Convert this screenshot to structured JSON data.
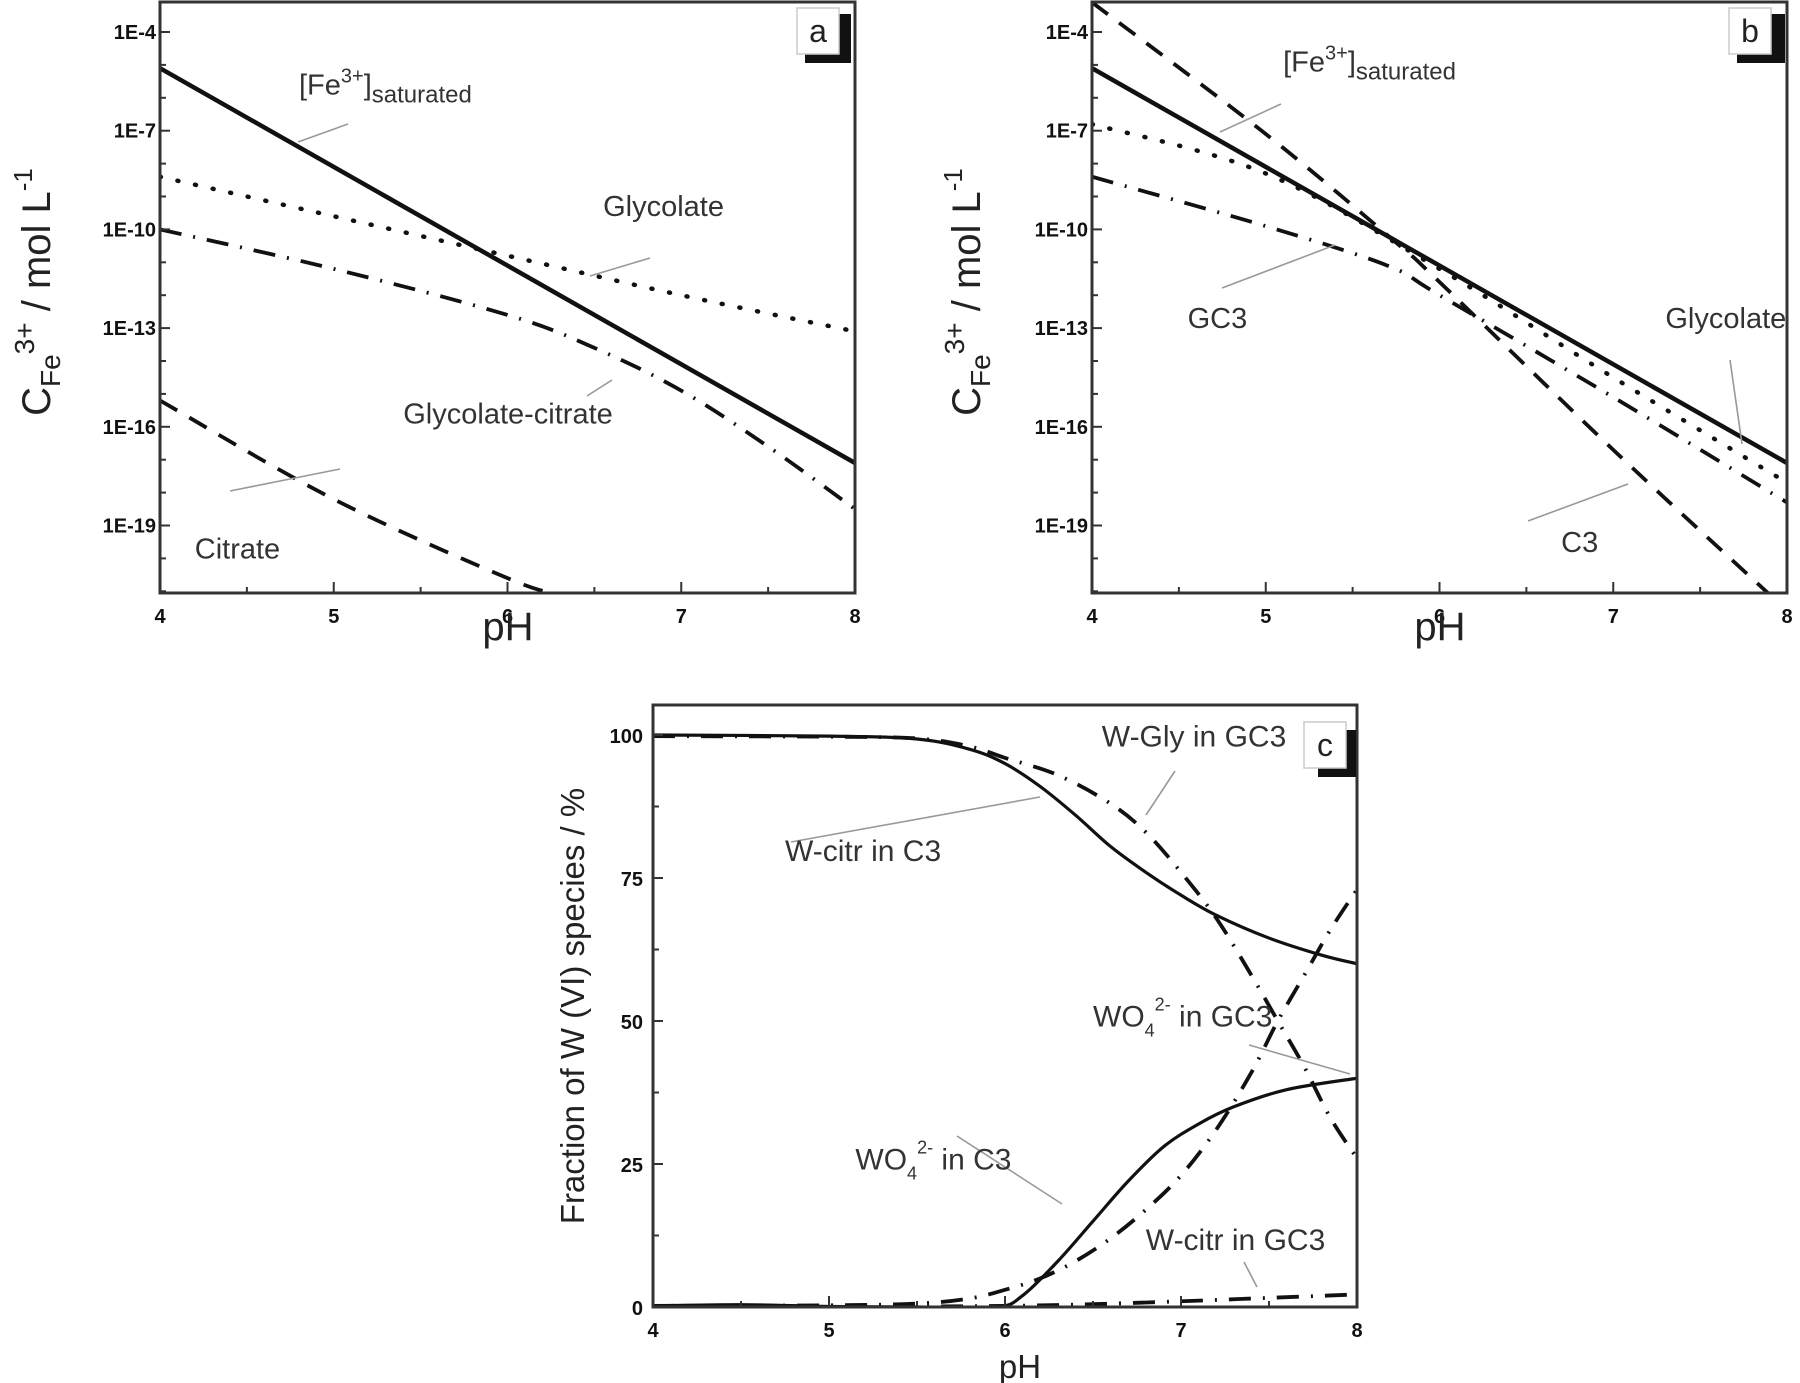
{
  "figure": {
    "panels": [
      {
        "id": "a",
        "label": "a"
      },
      {
        "id": "b",
        "label": "b"
      },
      {
        "id": "c",
        "label": "c"
      }
    ]
  },
  "chart_data": [
    {
      "panel": "a",
      "type": "line",
      "title": "",
      "xlabel": "pH",
      "ylabel": "C_Fe3+ / mol L^-1",
      "ylabel_parts": {
        "main": "C",
        "sub": "Fe",
        "sup": "3+",
        "rest": " / mol L",
        "unit_sup": "-1"
      },
      "yscale": "log",
      "xlim": [
        4,
        8
      ],
      "ylim_log10": [
        -21.1,
        -3.0
      ],
      "x_ticks": [
        "4",
        "5",
        "6",
        "7",
        "8"
      ],
      "y_ticks": [
        "1E-4",
        "1E-7",
        "1E-10",
        "1E-13",
        "1E-16",
        "1E-19"
      ],
      "grid": false,
      "legend": "inline annotations",
      "series": [
        {
          "name": "[Fe3+]saturated",
          "style": "solid",
          "x": [
            4,
            8
          ],
          "log10_y": [
            -5.1,
            -17.1
          ]
        },
        {
          "name": "Glycolate",
          "style": "dotted",
          "x": [
            4,
            5,
            6,
            7,
            8
          ],
          "log10_y": [
            -8.4,
            -9.6,
            -10.8,
            -12.0,
            -13.1
          ]
        },
        {
          "name": "Glycolate-citrate",
          "style": "dashdot",
          "x": [
            4,
            5,
            6,
            6.5,
            7,
            7.5,
            8
          ],
          "log10_y": [
            -10.0,
            -11.2,
            -12.6,
            -13.6,
            -14.9,
            -16.6,
            -18.5
          ]
        },
        {
          "name": "Citrate",
          "style": "dashed",
          "x": [
            4,
            5,
            6,
            6.3
          ],
          "log10_y": [
            -15.2,
            -18.2,
            -20.6,
            -21.1
          ]
        }
      ],
      "annotations": [
        {
          "text": "[Fe3+]saturated",
          "main": "[Fe",
          "sup": "3+",
          "close": "]",
          "sub": "saturated",
          "x": 4.8,
          "log10_y": -5.9
        },
        {
          "text": "Glycolate",
          "x": 6.55,
          "log10_y": -9.6
        },
        {
          "text": "Glycolate-citrate",
          "x": 5.4,
          "log10_y": -15.9
        },
        {
          "text": "Citrate",
          "x": 4.2,
          "log10_y": -20.0
        }
      ]
    },
    {
      "panel": "b",
      "type": "line",
      "title": "",
      "xlabel": "pH",
      "ylabel": "C_Fe3+ / mol L^-1",
      "ylabel_parts": {
        "main": "C",
        "sub": "Fe",
        "sup": "3+",
        "rest": " / mol L",
        "unit_sup": "-1"
      },
      "yscale": "log",
      "xlim": [
        4,
        8
      ],
      "ylim_log10": [
        -21.1,
        -3.0
      ],
      "x_ticks": [
        "4",
        "5",
        "6",
        "7",
        "8"
      ],
      "y_ticks": [
        "1E-4",
        "1E-7",
        "1E-10",
        "1E-13",
        "1E-16",
        "1E-19"
      ],
      "grid": false,
      "legend": "inline annotations",
      "series": [
        {
          "name": "[Fe3+]saturated",
          "style": "solid",
          "x": [
            4,
            8
          ],
          "log10_y": [
            -5.1,
            -17.1
          ]
        },
        {
          "name": "C3",
          "style": "dashed",
          "x": [
            4,
            5,
            5.75,
            6,
            7,
            7.9
          ],
          "log10_y": [
            -3.1,
            -7.1,
            -10.4,
            -11.6,
            -16.7,
            -21.1
          ]
        },
        {
          "name": "Glycolate",
          "style": "dotted",
          "x": [
            4,
            5,
            6,
            7,
            8
          ],
          "log10_y": [
            -6.8,
            -8.3,
            -11.2,
            -14.5,
            -17.7
          ]
        },
        {
          "name": "GC3",
          "style": "dashdot",
          "x": [
            4,
            5,
            5.7,
            6,
            7,
            8
          ],
          "log10_y": [
            -8.4,
            -9.9,
            -11.1,
            -12.0,
            -15.1,
            -18.3
          ]
        }
      ],
      "annotations": [
        {
          "text": "[Fe3+]saturated",
          "main": "[Fe",
          "sup": "3+",
          "close": "]",
          "sub": "saturated",
          "x": 5.1,
          "log10_y": -5.2
        },
        {
          "text": "GC3",
          "x": 4.55,
          "log10_y": -13.0
        },
        {
          "text": "Glycolate",
          "x": 7.3,
          "log10_y": -13.0
        },
        {
          "text": "C3",
          "x": 6.7,
          "log10_y": -19.8
        }
      ]
    },
    {
      "panel": "c",
      "type": "line",
      "title": "",
      "xlabel": "pH",
      "ylabel": "Fraction of W (VI) species / %",
      "xlim": [
        4,
        8
      ],
      "ylim": [
        0,
        104
      ],
      "x_ticks": [
        "4",
        "5",
        "6",
        "7",
        "8"
      ],
      "y_ticks": [
        "0",
        "25",
        "50",
        "75",
        "100"
      ],
      "grid": false,
      "legend": "inline annotations",
      "series": [
        {
          "name": "W-citr in C3",
          "style": "solid",
          "x": [
            4,
            5,
            5.5,
            5.8,
            6,
            6.2,
            6.4,
            6.6,
            6.8,
            7,
            7.2,
            7.5,
            7.8,
            8
          ],
          "y": [
            100,
            99.8,
            99.3,
            97.5,
            95,
            91,
            86,
            80.5,
            76,
            72,
            68.5,
            64.5,
            61.5,
            60
          ]
        },
        {
          "name": "WO4 2- in C3",
          "style": "solid",
          "x": [
            4,
            4.5,
            5,
            5.5,
            5.95,
            6.1,
            6.3,
            6.5,
            6.7,
            6.9,
            7.1,
            7.3,
            7.6,
            8
          ],
          "y": [
            0.2,
            0.4,
            0.1,
            0,
            0,
            2,
            8,
            15,
            22,
            28,
            32,
            35,
            38,
            40
          ]
        },
        {
          "name": "W-Gly in GC3",
          "style": "dashdot",
          "x": [
            4,
            5,
            5.5,
            5.8,
            6,
            6.3,
            6.6,
            6.8,
            7,
            7.2,
            7.4,
            7.55,
            7.7,
            7.85,
            8
          ],
          "y": [
            99.8,
            99.7,
            99.4,
            98,
            96,
            93,
            88,
            83,
            76,
            68,
            58,
            50,
            42,
            33,
            26
          ]
        },
        {
          "name": "WO4 2- in GC3",
          "style": "dashdot",
          "x": [
            4,
            5,
            5.5,
            5.8,
            6,
            6.2,
            6.4,
            6.6,
            6.8,
            7,
            7.2,
            7.4,
            7.55,
            7.7,
            7.85,
            8
          ],
          "y": [
            0.2,
            0.3,
            0.6,
            1.5,
            3,
            5,
            8,
            12,
            17,
            23,
            31,
            41,
            50,
            58,
            66,
            73
          ]
        },
        {
          "name": "W-citr in GC3",
          "style": "dashdot",
          "x": [
            4,
            5,
            6,
            6.5,
            7,
            7.5,
            8
          ],
          "y": [
            0,
            0,
            0.2,
            0.5,
            1,
            1.6,
            2.2
          ]
        }
      ],
      "annotations": [
        {
          "text": "W-Gly in GC3",
          "x": 6.55,
          "y": 98
        },
        {
          "text": "W-citr in C3",
          "x": 4.75,
          "y": 78
        },
        {
          "text": "WO4 2- in GC3",
          "main": "WO",
          "sub": "4",
          "sup": "2-",
          "rest": " in GC3",
          "x": 6.5,
          "y": 49
        },
        {
          "text": "WO4 2- in C3",
          "main": "WO",
          "sub": "4",
          "sup": "2-",
          "rest": " in C3",
          "x": 5.15,
          "y": 24
        },
        {
          "text": "W-citr in GC3",
          "x": 6.8,
          "y": 10
        }
      ]
    }
  ]
}
